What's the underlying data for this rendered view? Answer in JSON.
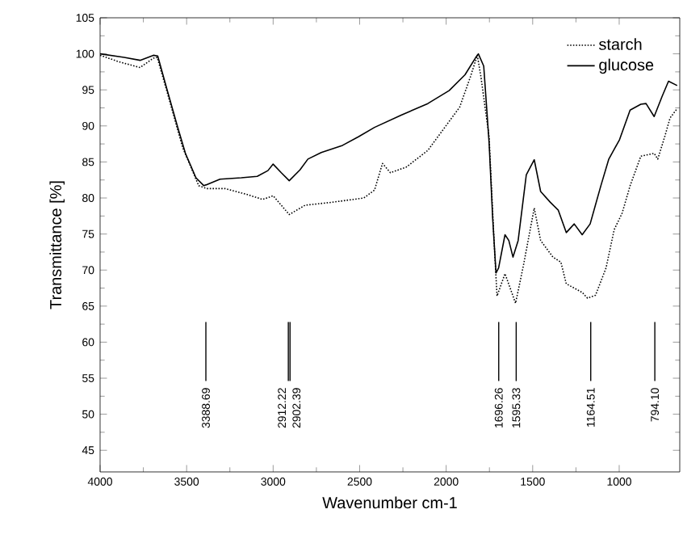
{
  "chart_data": {
    "type": "line",
    "xlabel": "Wavenumber cm-1",
    "ylabel": "Transmittance [%]",
    "xlim": [
      4000,
      650
    ],
    "ylim": [
      42,
      105
    ],
    "xticks": [
      4000,
      3500,
      3000,
      2500,
      2000,
      1500,
      1000
    ],
    "yticks": [
      45,
      50,
      55,
      60,
      65,
      70,
      75,
      80,
      85,
      90,
      95,
      100,
      105
    ],
    "legend": "top right",
    "grid": false,
    "series": [
      {
        "name": "starch",
        "color": "#000000",
        "line_style": "dotted",
        "x": [
          4000,
          3892,
          3769,
          3692,
          3670,
          3615,
          3523,
          3430,
          3384,
          3277,
          3153,
          3061,
          3000,
          2953,
          2907,
          2815,
          2661,
          2476,
          2414,
          2368,
          2322,
          2230,
          2106,
          2014,
          1922,
          1860,
          1820,
          1799,
          1752,
          1722,
          1706,
          1660,
          1599,
          1553,
          1491,
          1454,
          1383,
          1337,
          1306,
          1214,
          1183,
          1137,
          1076,
          1029,
          983,
          937,
          875,
          798,
          777,
          737,
          706,
          665
        ],
        "values": [
          99.8,
          98.9,
          98.1,
          99.4,
          99.5,
          94.9,
          87,
          81.7,
          81.3,
          81.3,
          80.5,
          79.8,
          80.3,
          79,
          77.7,
          79,
          79.4,
          80,
          81.1,
          84.8,
          83.5,
          84.3,
          86.6,
          89.6,
          92.6,
          96.8,
          99.8,
          96.8,
          88.5,
          73.4,
          66.4,
          69.5,
          65.4,
          70.7,
          78.6,
          74.1,
          71.8,
          71.1,
          68.1,
          66.9,
          66.1,
          66.5,
          70.3,
          75.6,
          77.9,
          81.7,
          85.8,
          86.2,
          85.4,
          88.5,
          91.1,
          92.4
        ]
      },
      {
        "name": "glucose",
        "color": "#000000",
        "line_style": "solid",
        "x": [
          4000,
          3861,
          3769,
          3692,
          3667,
          3615,
          3554,
          3507,
          3446,
          3400,
          3369,
          3307,
          3184,
          3092,
          3030,
          3000,
          2953,
          2907,
          2845,
          2799,
          2722,
          2599,
          2507,
          2414,
          2260,
          2106,
          1983,
          1891,
          1829,
          1814,
          1783,
          1752,
          1731,
          1712,
          1697,
          1660,
          1638,
          1614,
          1584,
          1537,
          1491,
          1454,
          1398,
          1352,
          1306,
          1260,
          1214,
          1168,
          1106,
          1060,
          998,
          937,
          875,
          845,
          798,
          752,
          715,
          665
        ],
        "values": [
          100,
          99.5,
          99.1,
          99.8,
          99.7,
          95.2,
          90,
          86.2,
          82.8,
          81.7,
          82,
          82.6,
          82.8,
          83,
          83.8,
          84.7,
          83.5,
          82.4,
          83.9,
          85.4,
          86.3,
          87.3,
          88.5,
          89.8,
          91.5,
          93.1,
          94.9,
          97.1,
          99.5,
          100,
          98.3,
          87.7,
          77.1,
          69.6,
          70.3,
          74.9,
          74.1,
          71.8,
          74.1,
          83.2,
          85.3,
          80.9,
          79.4,
          78.3,
          75.2,
          76.4,
          74.9,
          76.4,
          81.7,
          85.4,
          88.1,
          92.2,
          93,
          93.1,
          91.3,
          94.1,
          96.2,
          95.6
        ]
      }
    ],
    "ref_lines": [
      {
        "axis": "x",
        "value": 3388.69,
        "label": "3388.69"
      },
      {
        "axis": "x",
        "value": 2912.22,
        "label": "2912.22"
      },
      {
        "axis": "x",
        "value": 2902.39,
        "label": "2902.39"
      },
      {
        "axis": "x",
        "value": 1696.26,
        "label": "1696.26"
      },
      {
        "axis": "x",
        "value": 1595.33,
        "label": "1595.33"
      },
      {
        "axis": "x",
        "value": 1164.51,
        "label": "1164.51"
      },
      {
        "axis": "x",
        "value": 794.1,
        "label": "794.10"
      }
    ]
  }
}
